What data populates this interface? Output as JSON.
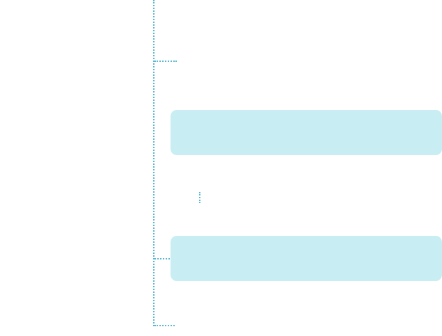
{
  "colors": {
    "connector": "#5ab8d0",
    "box_fill": "#c8eef3"
  }
}
